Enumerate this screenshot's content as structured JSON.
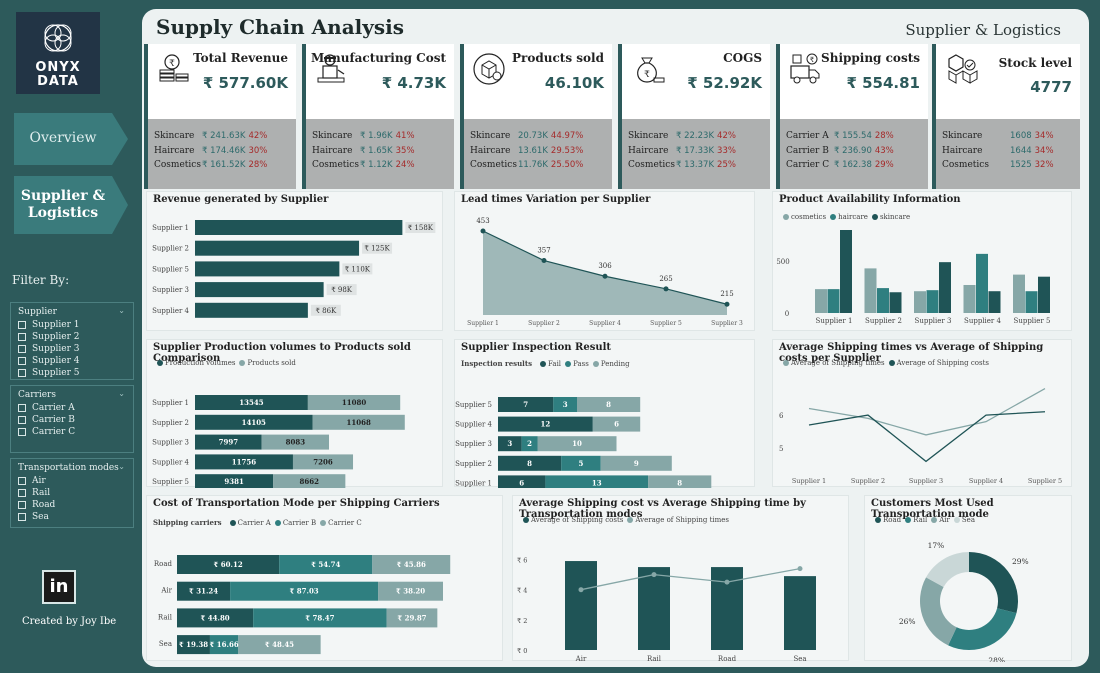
{
  "logo": {
    "line1": "ONYX",
    "line2": "DATA"
  },
  "nav": {
    "overview": "Overview",
    "supplier_line1": "Supplier &",
    "supplier_line2": "Logistics"
  },
  "filters": {
    "title": "Filter By:",
    "supplier": {
      "label": "Supplier",
      "items": [
        "Supplier 1",
        "Supplier 2",
        "Supplier 3",
        "Supplier 4",
        "Supplier 5"
      ]
    },
    "carriers": {
      "label": "Carriers",
      "items": [
        "Carrier A",
        "Carrier B",
        "Carrier C"
      ]
    },
    "transport": {
      "label": "Transportation modes",
      "items": [
        "Air",
        "Rail",
        "Road",
        "Sea"
      ]
    }
  },
  "credit": "Created by Joy Ibe",
  "linkedin": "in",
  "header": {
    "title": "Supply Chain Analysis",
    "subtitle": "Supplier & Logistics"
  },
  "kpis": [
    {
      "label": "Total Revenue",
      "value": "₹ 577.60K",
      "icon": "coins-icon",
      "rows": [
        [
          "Skincare",
          "₹ 241.63K",
          "42%"
        ],
        [
          "Haircare",
          "₹ 174.46K",
          "30%"
        ],
        [
          "Cosmetics",
          "₹ 161.52K",
          "28%"
        ]
      ]
    },
    {
      "label": "Manufacturing Cost",
      "value": "₹ 4.73K",
      "icon": "worker-icon",
      "rows": [
        [
          "Skincare",
          "₹ 1.96K",
          "41%"
        ],
        [
          "Haircare",
          "₹ 1.65K",
          "35%"
        ],
        [
          "Cosmetics",
          "₹ 1.12K",
          "24%"
        ]
      ]
    },
    {
      "label": "Products sold",
      "value": "46.10K",
      "icon": "product-box-icon",
      "rows": [
        [
          "Skincare",
          "20.73K",
          "44.97%"
        ],
        [
          "Haircare",
          "13.61K",
          "29.53%"
        ],
        [
          "Cosmetics",
          "11.76K",
          "25.50%"
        ]
      ]
    },
    {
      "label": "COGS",
      "value": "₹ 52.92K",
      "icon": "money-bag-icon",
      "rows": [
        [
          "Skincare",
          "₹ 22.23K",
          "42%"
        ],
        [
          "Haircare",
          "₹ 17.33K",
          "33%"
        ],
        [
          "Cosmetics",
          "₹ 13.37K",
          "25%"
        ]
      ]
    },
    {
      "label": "Shipping costs",
      "value": "₹ 554.81",
      "icon": "delivery-truck-icon",
      "rows": [
        [
          "Carrier A",
          "₹ 155.54",
          "28%"
        ],
        [
          "Carrier B",
          "₹ 236.90",
          "43%"
        ],
        [
          "Carrier C",
          "₹ 162.38",
          "29%"
        ]
      ]
    },
    {
      "label": "Stock level",
      "value": "4777",
      "icon": "stock-boxes-icon",
      "rows": [
        [
          "Skincare",
          "1608",
          "34%"
        ],
        [
          "Haircare",
          "1644",
          "34%"
        ],
        [
          "Cosmetics",
          "1525",
          "32%"
        ]
      ]
    }
  ],
  "colors": {
    "dark": "#1f5456",
    "mid": "#2f7f80",
    "light": "#86a7a7",
    "pale": "#c9d7d7",
    "lead_fill": "#9fb8b8"
  },
  "chart_data": [
    {
      "id": "revenue",
      "type": "bar",
      "title": "Revenue generated by Supplier",
      "categories": [
        "Supplier 1",
        "Supplier 2",
        "Supplier 5",
        "Supplier 3",
        "Supplier 4"
      ],
      "values": [
        158,
        125,
        110,
        98,
        86
      ],
      "labels": [
        "₹ 158K",
        "₹ 125K",
        "₹ 110K",
        "₹ 98K",
        "₹ 86K"
      ]
    },
    {
      "id": "lead",
      "type": "area",
      "title": "Lead times Variation per Supplier",
      "categories": [
        "Supplier 1",
        "Supplier 2",
        "Supplier 4",
        "Supplier 5",
        "Supplier 3"
      ],
      "values": [
        453,
        357,
        306,
        265,
        215
      ]
    },
    {
      "id": "availability",
      "type": "bar",
      "title": "Product Availability Information",
      "legend": [
        "cosmetics",
        "haircare",
        "skincare"
      ],
      "categories": [
        "Supplier 1",
        "Supplier 2",
        "Supplier 3",
        "Supplier 4",
        "Supplier 5"
      ],
      "series": [
        {
          "name": "cosmetics",
          "values": [
            230,
            430,
            210,
            270,
            370
          ]
        },
        {
          "name": "haircare",
          "values": [
            230,
            240,
            220,
            570,
            210
          ]
        },
        {
          "name": "skincare",
          "values": [
            800,
            200,
            490,
            210,
            350
          ]
        }
      ],
      "yticks": [
        "0",
        "500"
      ],
      "ylim": [
        0,
        900
      ]
    },
    {
      "id": "production",
      "type": "bar",
      "title": "Supplier Production volumes to Products sold Comparison",
      "legend": [
        "Production volumes",
        "Products sold"
      ],
      "categories": [
        "Supplier 1",
        "Supplier 2",
        "Supplier 3",
        "Supplier 4",
        "Supplier 5"
      ],
      "series": [
        {
          "name": "Production volumes",
          "values": [
            13545,
            14105,
            7997,
            11756,
            9381
          ]
        },
        {
          "name": "Products sold",
          "values": [
            11080,
            11068,
            8083,
            7206,
            8662
          ]
        }
      ]
    },
    {
      "id": "inspection",
      "type": "bar",
      "title": "Supplier Inspection Result",
      "legend_title": "Inspection results",
      "legend": [
        "Fail",
        "Pass",
        "Pending"
      ],
      "categories": [
        "Supplier 5",
        "Supplier 4",
        "Supplier 3",
        "Supplier 2",
        "Supplier 1"
      ],
      "series": [
        {
          "name": "Fail",
          "values": [
            7,
            12,
            3,
            8,
            6
          ]
        },
        {
          "name": "Pass",
          "values": [
            3,
            0,
            2,
            5,
            13
          ]
        },
        {
          "name": "Pending",
          "values": [
            8,
            6,
            10,
            9,
            8
          ]
        }
      ]
    },
    {
      "id": "shipping",
      "type": "line",
      "title": "Average Shipping times vs Average of Shipping costs per Supplier",
      "legend": [
        "Average of Shipping times",
        "Average of Shipping costs"
      ],
      "categories": [
        "Supplier 1",
        "Supplier 2",
        "Supplier 3",
        "Supplier 4",
        "Supplier 5"
      ],
      "series": [
        {
          "name": "Average of Shipping times",
          "values": [
            6.2,
            5.9,
            5.4,
            5.8,
            6.8
          ]
        },
        {
          "name": "Average of Shipping costs",
          "values": [
            5.7,
            6.0,
            4.6,
            6.0,
            6.1
          ]
        }
      ],
      "yticks": [
        "5",
        "6"
      ],
      "ylim": [
        4.4,
        7.0
      ]
    },
    {
      "id": "transport_cost",
      "type": "bar",
      "title": "Cost of Transportation Mode per Shipping Carriers",
      "legend_title": "Shipping carriers",
      "legend": [
        "Carrier A",
        "Carrier B",
        "Carrier C"
      ],
      "categories": [
        "Road",
        "Air",
        "Rail",
        "Sea"
      ],
      "series": [
        {
          "name": "Carrier A",
          "values": [
            60.12,
            31.24,
            44.8,
            19.38
          ],
          "labels": [
            "₹ 60.12",
            "₹ 31.24",
            "₹ 44.80",
            "₹ 19.38"
          ]
        },
        {
          "name": "Carrier B",
          "values": [
            54.74,
            87.03,
            78.47,
            16.66
          ],
          "labels": [
            "₹ 54.74",
            "₹ 87.03",
            "₹ 78.47",
            "₹ 16.66"
          ]
        },
        {
          "name": "Carrier C",
          "values": [
            45.86,
            38.2,
            29.87,
            48.45
          ],
          "labels": [
            "₹ 45.86",
            "₹ 38.20",
            "₹ 29.87",
            "₹ 48.45"
          ]
        }
      ]
    },
    {
      "id": "mode_avg",
      "type": "bar",
      "title": "Average Shipping cost vs Average Shipping time by Transportation modes",
      "legend": [
        "Average of Shipping costs",
        "Average of Shipping times"
      ],
      "categories": [
        "Air",
        "Rail",
        "Road",
        "Sea"
      ],
      "series": [
        {
          "name": "Average of Shipping costs",
          "values": [
            5.9,
            5.5,
            5.5,
            4.9
          ]
        },
        {
          "name": "Average of Shipping times",
          "values": [
            4.0,
            5.0,
            4.5,
            5.4
          ]
        }
      ],
      "yticks": [
        "₹ 0",
        "₹ 2",
        "₹ 4",
        "₹ 6"
      ],
      "ylim": [
        0,
        6.5
      ]
    },
    {
      "id": "customers",
      "type": "pie",
      "title": "Customers Most Used Transportation mode",
      "legend": [
        "Road",
        "Rail",
        "Air",
        "Sea"
      ],
      "values": [
        29,
        28,
        26,
        17
      ],
      "labels": [
        "29%",
        "28%",
        "26%",
        "17%"
      ]
    }
  ]
}
